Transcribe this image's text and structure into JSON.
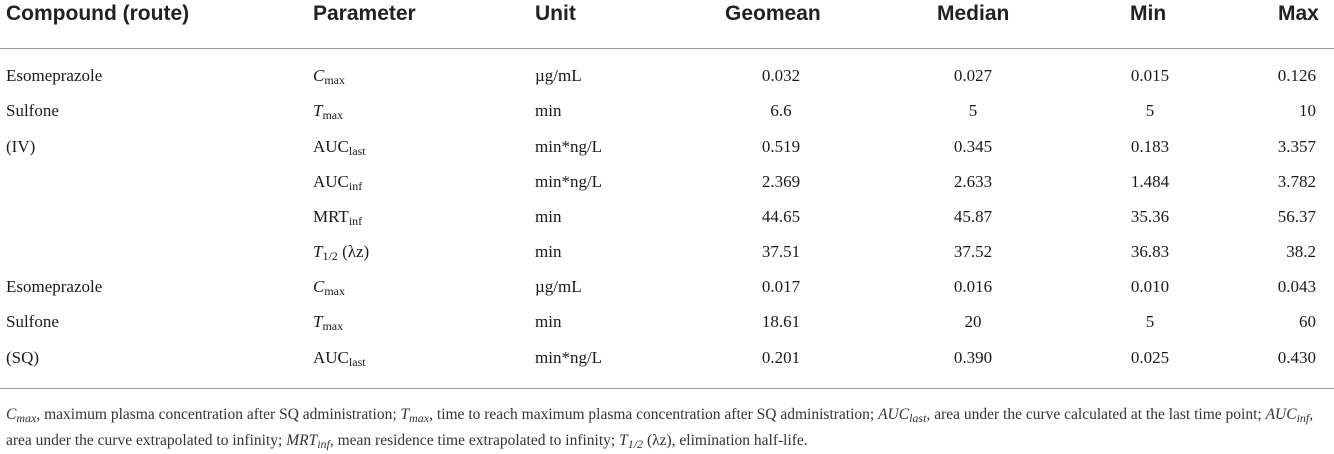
{
  "headers": [
    "Compound (route)",
    "Parameter",
    "Unit",
    "Geomean",
    "Median",
    "Min",
    "Max"
  ],
  "rows": [
    {
      "compound": "Esomeprazole",
      "param_main": "C",
      "param_sub": "max",
      "param_suffix": "",
      "italic": true,
      "unit": "µg/mL",
      "geomean": "0.032",
      "median": "0.027",
      "min": "0.015",
      "max": "0.126"
    },
    {
      "compound": "Sulfone",
      "param_main": "T",
      "param_sub": "max",
      "param_suffix": "",
      "italic": true,
      "unit": "min",
      "geomean": "6.6",
      "median": "5",
      "min": "5",
      "max": "10"
    },
    {
      "compound": "(IV)",
      "param_main": "AUC",
      "param_sub": "last",
      "param_suffix": "",
      "italic": false,
      "unit": "min*ng/L",
      "geomean": "0.519",
      "median": "0.345",
      "min": "0.183",
      "max": "3.357"
    },
    {
      "compound": "",
      "param_main": "AUC",
      "param_sub": "inf",
      "param_suffix": "",
      "italic": false,
      "unit": "min*ng/L",
      "geomean": "2.369",
      "median": "2.633",
      "min": "1.484",
      "max": "3.782"
    },
    {
      "compound": "",
      "param_main": "MRT",
      "param_sub": "inf",
      "param_suffix": "",
      "italic": false,
      "unit": "min",
      "geomean": "44.65",
      "median": "45.87",
      "min": "35.36",
      "max": "56.37"
    },
    {
      "compound": "",
      "param_main": "T",
      "param_sub": "1/2",
      "param_suffix": " (λz)",
      "italic": true,
      "unit": "min",
      "geomean": "37.51",
      "median": "37.52",
      "min": "36.83",
      "max": "38.2"
    },
    {
      "compound": "Esomeprazole",
      "param_main": "C",
      "param_sub": "max",
      "param_suffix": "",
      "italic": true,
      "unit": "µg/mL",
      "geomean": "0.017",
      "median": "0.016",
      "min": "0.010",
      "max": "0.043"
    },
    {
      "compound": "Sulfone",
      "param_main": "T",
      "param_sub": "max",
      "param_suffix": "",
      "italic": true,
      "unit": "min",
      "geomean": "18.61",
      "median": "20",
      "min": "5",
      "max": "60"
    },
    {
      "compound": "(SQ)",
      "param_main": "AUC",
      "param_sub": "last",
      "param_suffix": "",
      "italic": false,
      "unit": "min*ng/L",
      "geomean": "0.201",
      "median": "0.390",
      "min": "0.025",
      "max": "0.430"
    }
  ],
  "footnote": [
    {
      "abbr_main": "C",
      "abbr_sub": "max",
      "text": ", maximum plasma concentration after SQ administration; "
    },
    {
      "abbr_main": "T",
      "abbr_sub": "max",
      "text": ", time to reach maximum plasma concentration after SQ administration; "
    },
    {
      "abbr_main": "AUC",
      "abbr_sub": "last",
      "text": ", area under the curve calculated at the last time point; "
    },
    {
      "abbr_main": "AUC",
      "abbr_sub": "inf",
      "text": ", area under the curve extrapolated to infinity; "
    },
    {
      "abbr_main": "MRT",
      "abbr_sub": "inf",
      "text": ", mean residence time extrapolated to infinity; "
    },
    {
      "abbr_main": "T",
      "abbr_sub": "1/2",
      "text": " (λz), elimination half-life."
    }
  ]
}
